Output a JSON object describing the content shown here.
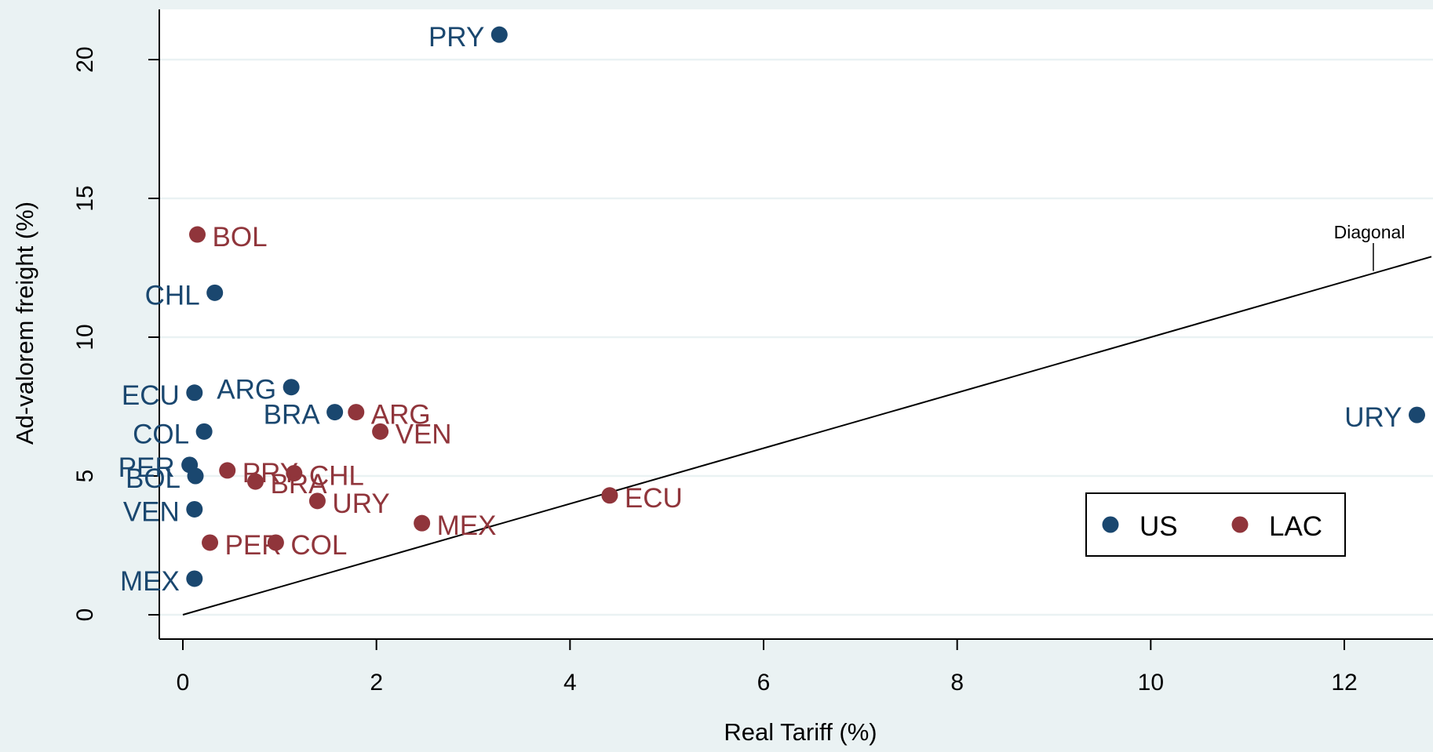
{
  "chart_data": {
    "type": "scatter",
    "title": "",
    "xlabel": "Real Tariff (%)",
    "ylabel": "Ad-valorem freight (%)",
    "xlim": [
      -0.25,
      12.9
    ],
    "ylim": [
      -0.9,
      21.6
    ],
    "xticks": [
      "0",
      "2",
      "4",
      "6",
      "8",
      "10",
      "12"
    ],
    "yticks": [
      "0",
      "5",
      "10",
      "15",
      "20"
    ],
    "grid": "horizontal",
    "legend_position": "lower-right",
    "series": [
      {
        "name": "US",
        "color": "#1a476f",
        "points": [
          {
            "label": "PRY",
            "x": 3.27,
            "y": 20.9
          },
          {
            "label": "CHL",
            "x": 0.33,
            "y": 11.6
          },
          {
            "label": "ECU",
            "x": 0.12,
            "y": 8.0
          },
          {
            "label": "ARG",
            "x": 1.12,
            "y": 8.2
          },
          {
            "label": "BRA",
            "x": 1.57,
            "y": 7.3
          },
          {
            "label": "COL",
            "x": 0.22,
            "y": 6.6
          },
          {
            "label": "PER",
            "x": 0.07,
            "y": 5.4
          },
          {
            "label": "BOL",
            "x": 0.13,
            "y": 5.0
          },
          {
            "label": "VEN",
            "x": 0.12,
            "y": 3.8
          },
          {
            "label": "MEX",
            "x": 0.12,
            "y": 1.3
          },
          {
            "label": "URY",
            "x": 12.75,
            "y": 7.2
          }
        ]
      },
      {
        "name": "LAC",
        "color": "#90353b",
        "points": [
          {
            "label": "BOL",
            "x": 0.15,
            "y": 13.7
          },
          {
            "label": "ARG",
            "x": 1.79,
            "y": 7.3
          },
          {
            "label": "VEN",
            "x": 2.04,
            "y": 6.6
          },
          {
            "label": "PRY",
            "x": 0.46,
            "y": 5.2
          },
          {
            "label": "CHL",
            "x": 1.15,
            "y": 5.1
          },
          {
            "label": "BRA",
            "x": 0.75,
            "y": 4.8
          },
          {
            "label": "URY",
            "x": 1.39,
            "y": 4.1
          },
          {
            "label": "ECU",
            "x": 4.41,
            "y": 4.3
          },
          {
            "label": "MEX",
            "x": 2.47,
            "y": 3.3
          },
          {
            "label": "PER",
            "x": 0.28,
            "y": 2.6
          },
          {
            "label": "COL",
            "x": 0.96,
            "y": 2.6
          }
        ]
      }
    ],
    "diagonal": {
      "label": "Diagonal",
      "from": [
        0,
        0
      ],
      "to": [
        12.9,
        12.9
      ]
    }
  }
}
